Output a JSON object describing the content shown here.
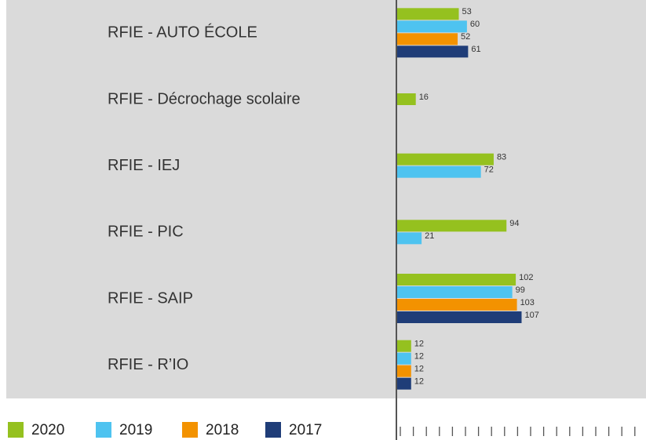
{
  "chart_data": {
    "type": "bar",
    "orientation": "horizontal",
    "categories": [
      "RFIE - AUTO ÉCOLE",
      "RFIE - Décrochage scolaire",
      "RFIE - IEJ",
      "RFIE - PIC",
      "RFIE - SAIP",
      "RFIE - R’IO"
    ],
    "series": [
      {
        "name": "2020",
        "color": "#95c11f",
        "values": [
          53,
          16,
          83,
          94,
          102,
          12
        ]
      },
      {
        "name": "2019",
        "color": "#4ec3f0",
        "values": [
          60,
          null,
          72,
          21,
          99,
          12
        ]
      },
      {
        "name": "2018",
        "color": "#f39200",
        "values": [
          52,
          null,
          null,
          null,
          103,
          12
        ]
      },
      {
        "name": "2017",
        "color": "#1f3d78",
        "values": [
          61,
          null,
          null,
          null,
          107,
          12
        ]
      }
    ],
    "xlim": [
      0,
      214
    ]
  }
}
